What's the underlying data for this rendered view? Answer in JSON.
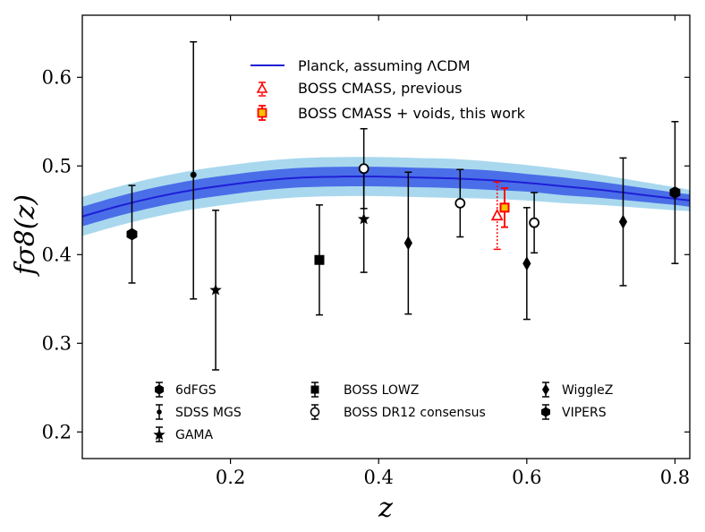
{
  "chart_data": {
    "type": "scatter",
    "xlabel": "z",
    "ylabel": "fσ8(z)",
    "xlim": [
      0.0,
      0.82
    ],
    "ylim": [
      0.17,
      0.67
    ],
    "xticks": [
      "0.2",
      "0.4",
      "0.6",
      "0.8"
    ],
    "xtick_values": [
      0.2,
      0.4,
      0.6,
      0.8
    ],
    "yticks": [
      "0.2",
      "0.3",
      "0.4",
      "0.5",
      "0.6"
    ],
    "ytick_values": [
      0.2,
      0.3,
      0.4,
      0.5,
      0.6
    ],
    "band": {
      "name": "Planck, assuming ΛCDM",
      "color": "#1f1fd6",
      "inner_color": "#4a6ee8",
      "outer_color": "#a9d8ee",
      "x": [
        0.0,
        0.05,
        0.1,
        0.15,
        0.2,
        0.25,
        0.3,
        0.35,
        0.4,
        0.45,
        0.5,
        0.55,
        0.6,
        0.65,
        0.7,
        0.75,
        0.8,
        0.82
      ],
      "y": [
        0.443,
        0.455,
        0.465,
        0.473,
        0.479,
        0.484,
        0.487,
        0.488,
        0.488,
        0.487,
        0.486,
        0.484,
        0.481,
        0.477,
        0.473,
        0.468,
        0.463,
        0.461
      ],
      "sigma1": [
        0.011,
        0.011,
        0.011,
        0.011,
        0.011,
        0.011,
        0.011,
        0.011,
        0.011,
        0.011,
        0.011,
        0.011,
        0.01,
        0.01,
        0.009,
        0.008,
        0.007,
        0.007
      ],
      "sigma2": [
        0.022,
        0.022,
        0.022,
        0.022,
        0.022,
        0.022,
        0.022,
        0.022,
        0.022,
        0.022,
        0.022,
        0.021,
        0.02,
        0.019,
        0.017,
        0.015,
        0.013,
        0.012
      ]
    },
    "series": [
      {
        "name": "6dFGS",
        "marker": "hexagon",
        "filled": true,
        "points": [
          {
            "x": 0.067,
            "y": 0.423,
            "lo": 0.368,
            "hi": 0.478
          }
        ]
      },
      {
        "name": "SDSS MGS",
        "marker": "smalldot",
        "filled": true,
        "points": [
          {
            "x": 0.15,
            "y": 0.49,
            "lo": 0.35,
            "hi": 0.64
          }
        ]
      },
      {
        "name": "GAMA",
        "marker": "star",
        "filled": true,
        "points": [
          {
            "x": 0.18,
            "y": 0.36,
            "lo": 0.27,
            "hi": 0.45
          },
          {
            "x": 0.38,
            "y": 0.44,
            "lo": 0.38,
            "hi": 0.5
          }
        ]
      },
      {
        "name": "BOSS LOWZ",
        "marker": "square",
        "filled": true,
        "points": [
          {
            "x": 0.32,
            "y": 0.394,
            "lo": 0.332,
            "hi": 0.456
          }
        ]
      },
      {
        "name": "BOSS DR12 consensus",
        "marker": "circle",
        "filled": false,
        "points": [
          {
            "x": 0.38,
            "y": 0.497,
            "lo": 0.452,
            "hi": 0.542
          },
          {
            "x": 0.51,
            "y": 0.458,
            "lo": 0.42,
            "hi": 0.496
          },
          {
            "x": 0.61,
            "y": 0.436,
            "lo": 0.402,
            "hi": 0.47
          }
        ]
      },
      {
        "name": "WiggleZ",
        "marker": "diamond",
        "filled": true,
        "points": [
          {
            "x": 0.44,
            "y": 0.413,
            "lo": 0.333,
            "hi": 0.493
          },
          {
            "x": 0.6,
            "y": 0.39,
            "lo": 0.327,
            "hi": 0.453
          },
          {
            "x": 0.73,
            "y": 0.437,
            "lo": 0.365,
            "hi": 0.509
          }
        ]
      },
      {
        "name": "VIPERS",
        "marker": "hexagon",
        "filled": true,
        "points": [
          {
            "x": 0.8,
            "y": 0.47,
            "lo": 0.39,
            "hi": 0.55
          }
        ]
      },
      {
        "name": "BOSS CMASS, previous",
        "marker": "triangle",
        "filled": false,
        "color": "#ff0000",
        "dotted": true,
        "points": [
          {
            "x": 0.56,
            "y": 0.444,
            "lo": 0.406,
            "hi": 0.482
          }
        ]
      },
      {
        "name": "BOSS CMASS + voids, this work",
        "marker": "square",
        "filled": true,
        "color": "#ff0000",
        "face": "#f5c400",
        "points": [
          {
            "x": 0.57,
            "y": 0.453,
            "lo": 0.431,
            "hi": 0.475
          }
        ]
      }
    ],
    "legend_top": [
      "Planck, assuming ΛCDM",
      "BOSS CMASS, previous",
      "BOSS CMASS + voids, this work"
    ],
    "legend_bottom": [
      "6dFGS",
      "SDSS MGS",
      "GAMA",
      "BOSS LOWZ",
      "BOSS DR12 consensus",
      "WiggleZ",
      "VIPERS"
    ]
  }
}
